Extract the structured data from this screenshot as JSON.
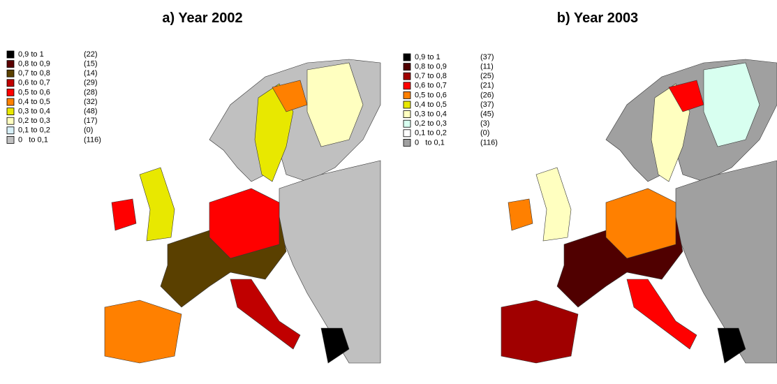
{
  "panels": [
    {
      "title": "a) Year 2002",
      "legend": [
        {
          "label": "0,9 to 1",
          "count": "(22)",
          "color": "#000000"
        },
        {
          "label": "0,8 to 0,9",
          "count": "(15)",
          "color": "#5a0000"
        },
        {
          "label": "0,7 to 0,8",
          "count": "(14)",
          "color": "#5a4000"
        },
        {
          "label": "0,6 to 0,7",
          "count": "(29)",
          "color": "#c00000"
        },
        {
          "label": "0,5 to 0,6",
          "count": "(28)",
          "color": "#ff0000"
        },
        {
          "label": "0,4 to 0,5",
          "count": "(32)",
          "color": "#ff8000"
        },
        {
          "label": "0,3 to 0,4",
          "count": "(48)",
          "color": "#e8e800"
        },
        {
          "label": "0,2 to 0,3",
          "count": "(17)",
          "color": "#ffffc0"
        },
        {
          "label": "0,1 to 0,2",
          "count": "(0)",
          "color": "#d8f0f8"
        },
        {
          "label": "0   to 0,1",
          "count": "(116)",
          "color": "#c0c0c0"
        }
      ]
    },
    {
      "title": "b) Year 2003",
      "legend": [
        {
          "label": "0,9 to 1",
          "count": "(37)",
          "color": "#000000"
        },
        {
          "label": "0,8 to 0,9",
          "count": "(11)",
          "color": "#500000"
        },
        {
          "label": "0,7 to 0,8",
          "count": "(25)",
          "color": "#a00000"
        },
        {
          "label": "0,6 to 0,7",
          "count": "(21)",
          "color": "#ff0000"
        },
        {
          "label": "0,5 to 0,6",
          "count": "(26)",
          "color": "#ff8000"
        },
        {
          "label": "0,4 to 0,5",
          "count": "(37)",
          "color": "#e8e800"
        },
        {
          "label": "0,3 to 0,4",
          "count": "(45)",
          "color": "#ffffc0"
        },
        {
          "label": "0,2 to 0,3",
          "count": "(3)",
          "color": "#d8fff0"
        },
        {
          "label": "0,1 to 0,2",
          "count": "(0)",
          "color": "#ffffff"
        },
        {
          "label": "0   to 0,1",
          "count": "(116)",
          "color": "#a0a0a0"
        }
      ]
    }
  ]
}
